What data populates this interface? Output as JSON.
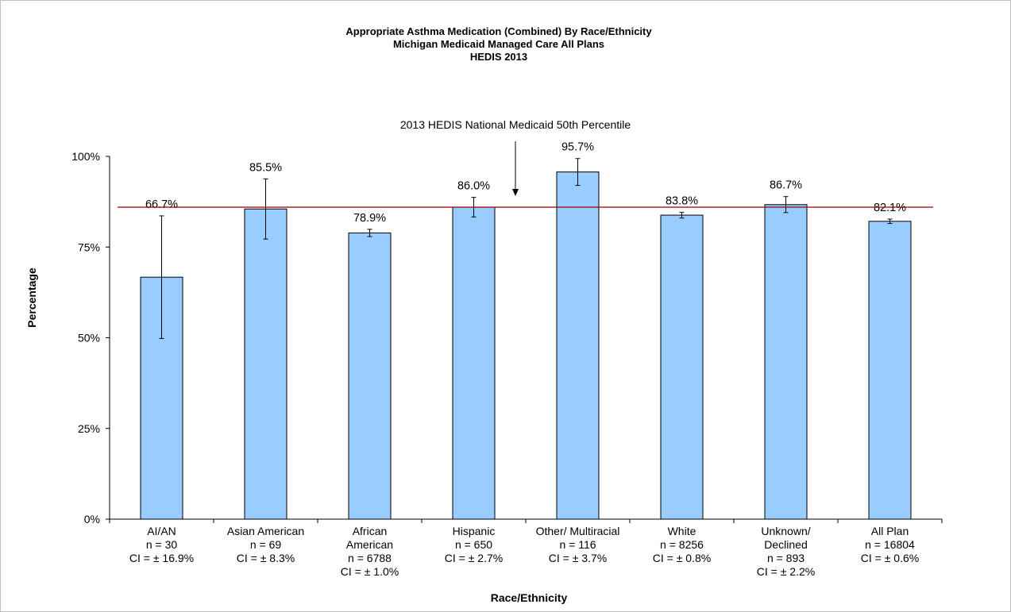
{
  "chart_data": {
    "type": "bar",
    "title": [
      "Appropriate Asthma Medication (Combined)  By Race/Ethnicity",
      "Michigan Medicaid Managed Care All Plans",
      "HEDIS 2013"
    ],
    "xlabel": "Race/Ethnicity",
    "ylabel": "Percentage",
    "ylim": [
      0,
      100
    ],
    "yticks": [
      0,
      25,
      50,
      75,
      100
    ],
    "ytick_labels": [
      "0%",
      "25%",
      "50%",
      "75%",
      "100%"
    ],
    "categories": [
      [
        "AI/AN",
        "n = 30",
        "CI = ± 16.9%"
      ],
      [
        "Asian American",
        "n = 69",
        "CI = ± 8.3%"
      ],
      [
        "African",
        "American",
        "n = 6788",
        "CI = ± 1.0%"
      ],
      [
        "Hispanic",
        "n = 650",
        "CI = ± 2.7%"
      ],
      [
        "Other/ Multiracial",
        "n = 116",
        "CI = ± 3.7%"
      ],
      [
        "White",
        "n = 8256",
        "CI = ± 0.8%"
      ],
      [
        "Unknown/",
        "Declined",
        "n = 893",
        "CI = ± 2.2%"
      ],
      [
        "All Plan",
        "n = 16804",
        "CI = ± 0.6%"
      ]
    ],
    "values": [
      66.7,
      85.5,
      78.9,
      86.0,
      95.7,
      83.8,
      86.7,
      82.1
    ],
    "value_labels": [
      "66.7%",
      "85.5%",
      "78.9%",
      "86.0%",
      "95.7%",
      "83.8%",
      "86.7%",
      "82.1%"
    ],
    "ci": [
      16.9,
      8.3,
      1.0,
      2.7,
      3.7,
      0.8,
      2.2,
      0.6
    ],
    "reference_line": {
      "value": 86.0,
      "label": "2013 HEDIS National Medicaid 50th Percentile",
      "color": "#990000"
    },
    "bar_color": "#99ccff",
    "bar_edge_color": "#000000",
    "grid": false,
    "legend": "none"
  }
}
